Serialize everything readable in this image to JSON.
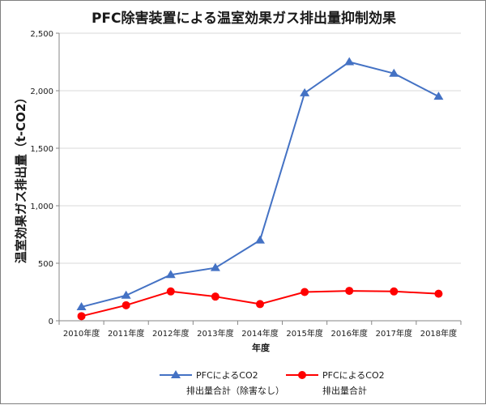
{
  "chart_data": {
    "type": "line",
    "title": "PFC除害装置による温室効果ガス排出量抑制効果",
    "xlabel": "年度",
    "ylabel": "温室効果ガス排出量（t-CO2）",
    "categories": [
      "2010年度",
      "2011年度",
      "2012年度",
      "2013年度",
      "2014年度",
      "2015年度",
      "2016年度",
      "2017年度",
      "2018年度"
    ],
    "ylim": [
      0,
      2500
    ],
    "yticks": [
      0,
      500,
      1000,
      1500,
      2000,
      2500
    ],
    "ytick_labels": [
      "0",
      "500",
      "1,000",
      "1,500",
      "2,000",
      "2,500"
    ],
    "grid": true,
    "legend_position": "bottom",
    "series": [
      {
        "name_line1": "PFCによるCO2",
        "name_line2": "排出量合計（除害なし）",
        "color": "#4472c4",
        "marker": "triangle",
        "values": [
          120,
          220,
          400,
          460,
          700,
          1980,
          2250,
          2150,
          1950
        ]
      },
      {
        "name_line1": "PFCによるCO2",
        "name_line2": "排出量合計",
        "color": "#ff0000",
        "marker": "circle",
        "values": [
          40,
          135,
          255,
          210,
          145,
          250,
          260,
          255,
          235
        ]
      }
    ]
  }
}
